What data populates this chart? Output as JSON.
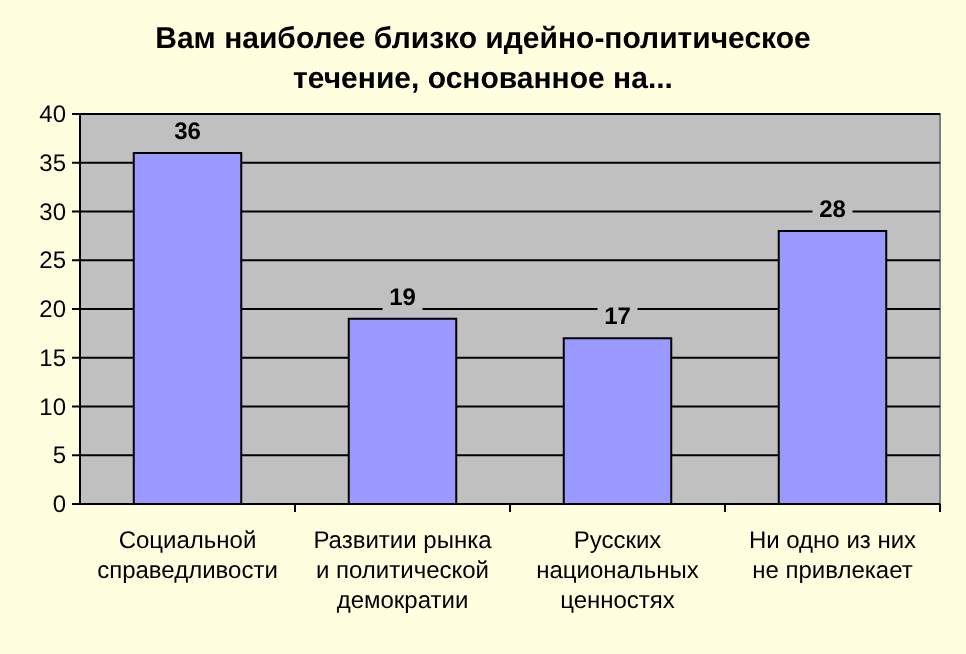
{
  "chart_data": {
    "type": "bar",
    "title": "Вам наиболее близко идейно-политическое течение, основанное на...",
    "categories": [
      "Социальной справедливости",
      "Развитии рынка и политической демократии",
      "Русских национальных ценностях",
      "Ни одно из них не привлекает"
    ],
    "values": [
      36,
      19,
      17,
      28
    ],
    "color": "#9999ff",
    "data_labels": true,
    "ylim": [
      0,
      40
    ],
    "yticks": [
      0,
      5,
      10,
      15,
      20,
      25,
      30,
      35,
      40
    ],
    "grid": "y"
  }
}
